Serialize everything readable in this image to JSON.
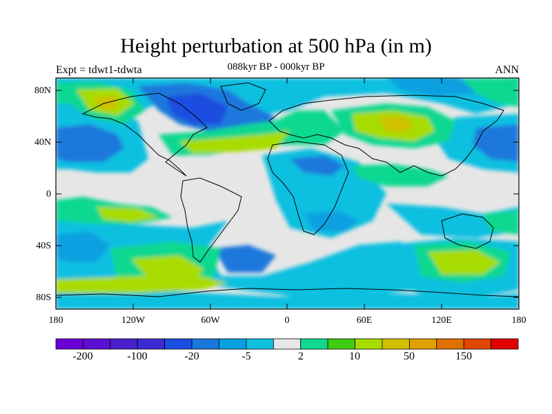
{
  "title": "Height perturbation at 500 hPa (in m)",
  "subtitle": "088kyr BP - 000kyr BP",
  "experiment_label": "Expt = tdwt1-tdwta",
  "season_label": "ANN",
  "latitude_labels": [
    "80N",
    "40N",
    "0",
    "40S",
    "80S"
  ],
  "longitude_labels": [
    "180",
    "120W",
    "60W",
    "0",
    "60E",
    "120E",
    "180"
  ],
  "colorbar": {
    "colors": [
      "#6a00d8",
      "#5a10d0",
      "#4a20cc",
      "#3a2ad4",
      "#1a4ee0",
      "#1a78dc",
      "#0aa0e0",
      "#10c0e0",
      "#e6e6e6",
      "#10d890",
      "#40cc10",
      "#a8dc00",
      "#d0c000",
      "#e0a000",
      "#e07000",
      "#e04800",
      "#e00000"
    ],
    "tick_labels": [
      "-200",
      "-100",
      "-20",
      "-5",
      "2",
      "10",
      "50",
      "150"
    ]
  },
  "legend_colors": {
    "missing": "#e6e6e6",
    "light_cyan": "#10c0e0",
    "cyan": "#0aa0e0",
    "blue": "#1a78dc",
    "dark_blue": "#1a4ee0",
    "deep_blue": "#3a2ad4",
    "green": "#10d890",
    "lime": "#40cc10",
    "yellowgreen": "#a8dc00",
    "gold": "#d0c000",
    "orange": "#e0a000"
  }
}
